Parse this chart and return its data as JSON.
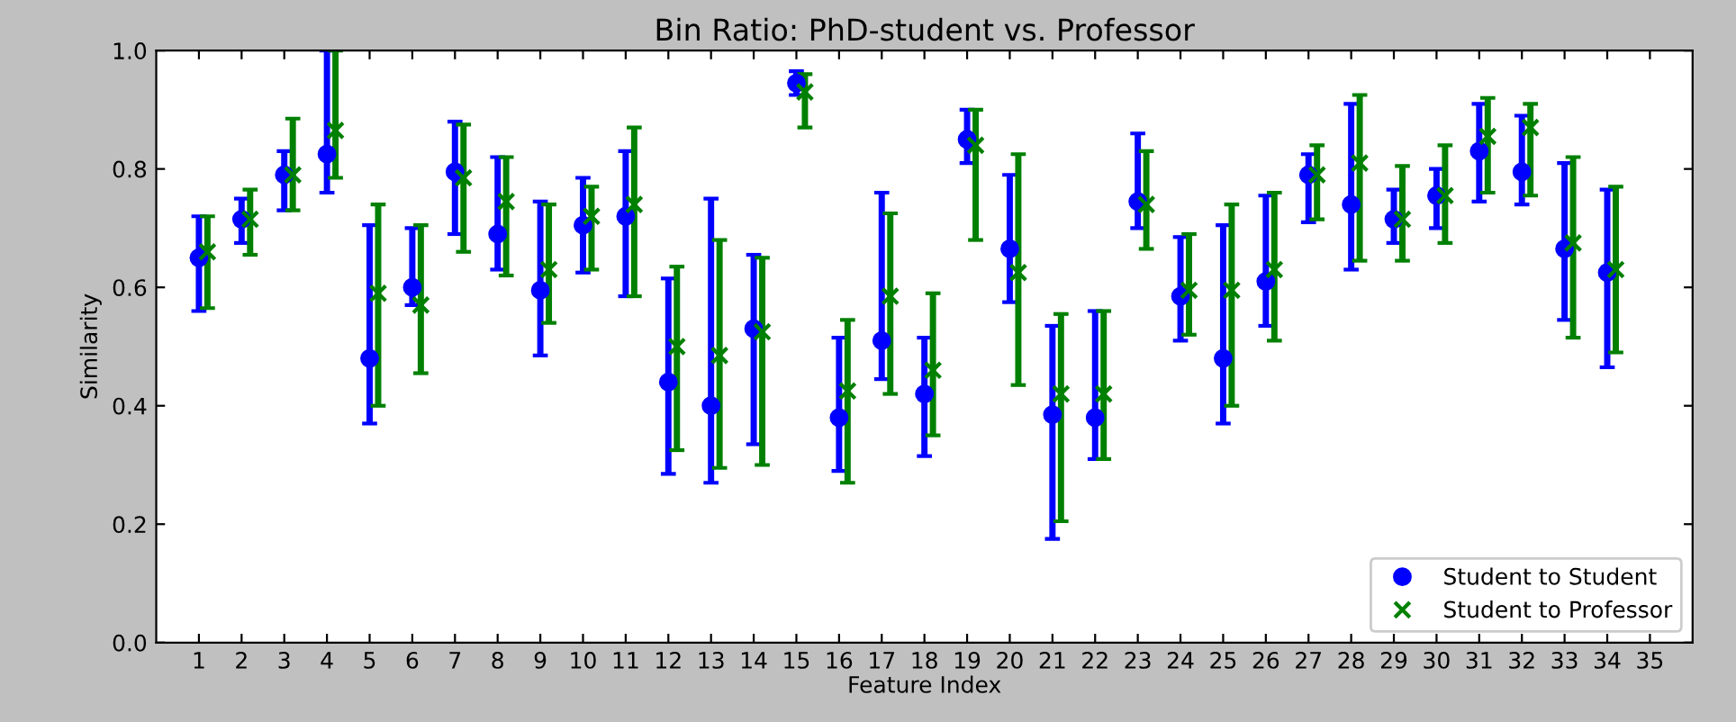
{
  "chart_data": {
    "type": "scatter",
    "title": "Bin Ratio: PhD-student vs. Professor",
    "xlabel": "Feature Index",
    "ylabel": "Similarity",
    "xlim": [
      0,
      36
    ],
    "xticks": [
      1,
      2,
      3,
      4,
      5,
      6,
      7,
      8,
      9,
      10,
      11,
      12,
      13,
      14,
      15,
      16,
      17,
      18,
      19,
      20,
      21,
      22,
      23,
      24,
      25,
      26,
      27,
      28,
      29,
      30,
      31,
      32,
      33,
      34,
      35
    ],
    "ylim": [
      0,
      1
    ],
    "yticks": [
      {
        "value": 0,
        "label": "0.0"
      },
      {
        "value": 0.2,
        "label": "0.2"
      },
      {
        "value": 0.4,
        "label": "0.4"
      },
      {
        "value": 0.6,
        "label": "0.6"
      },
      {
        "value": 0.8,
        "label": "0.8"
      },
      {
        "value": 1,
        "label": "1.0"
      }
    ],
    "grid": false,
    "legend": "bottom right",
    "series": [
      {
        "name": "Student to Student",
        "color": "#0000ff",
        "marker": "circle",
        "x": [
          1,
          2,
          3,
          4,
          5,
          6,
          7,
          8,
          9,
          10,
          11,
          12,
          13,
          14,
          15,
          16,
          17,
          18,
          19,
          20,
          21,
          22,
          23,
          24,
          25,
          26,
          27,
          28,
          29,
          30,
          31,
          32,
          33,
          34
        ],
        "values": [
          0.65,
          0.715,
          0.79,
          0.825,
          0.48,
          0.6,
          0.795,
          0.69,
          0.595,
          0.705,
          0.72,
          0.44,
          0.4,
          0.53,
          0.945,
          0.38,
          0.51,
          0.42,
          0.85,
          0.665,
          0.385,
          0.38,
          0.745,
          0.585,
          0.48,
          0.61,
          0.79,
          0.74,
          0.715,
          0.755,
          0.83,
          0.795,
          0.665,
          0.625
        ],
        "errors": [
          [
            0.56,
            0.72
          ],
          [
            0.675,
            0.75
          ],
          [
            0.73,
            0.83
          ],
          [
            0.76,
            1.0
          ],
          [
            0.37,
            0.705
          ],
          [
            0.57,
            0.7
          ],
          [
            0.69,
            0.88
          ],
          [
            0.63,
            0.82
          ],
          [
            0.485,
            0.745
          ],
          [
            0.625,
            0.785
          ],
          [
            0.585,
            0.83
          ],
          [
            0.285,
            0.615
          ],
          [
            0.27,
            0.75
          ],
          [
            0.335,
            0.655
          ],
          [
            0.925,
            0.965
          ],
          [
            0.29,
            0.515
          ],
          [
            0.445,
            0.76
          ],
          [
            0.315,
            0.515
          ],
          [
            0.81,
            0.9
          ],
          [
            0.575,
            0.79
          ],
          [
            0.175,
            0.535
          ],
          [
            0.31,
            0.56
          ],
          [
            0.7,
            0.86
          ],
          [
            0.51,
            0.685
          ],
          [
            0.37,
            0.705
          ],
          [
            0.535,
            0.755
          ],
          [
            0.71,
            0.825
          ],
          [
            0.63,
            0.91
          ],
          [
            0.675,
            0.765
          ],
          [
            0.7,
            0.8
          ],
          [
            0.745,
            0.91
          ],
          [
            0.74,
            0.89
          ],
          [
            0.545,
            0.81
          ],
          [
            0.465,
            0.765
          ]
        ]
      },
      {
        "name": "Student to Professor",
        "color": "#008000",
        "marker": "cross",
        "x": [
          1.2,
          2.2,
          3.2,
          4.2,
          5.2,
          6.2,
          7.2,
          8.2,
          9.2,
          10.2,
          11.2,
          12.2,
          13.2,
          14.2,
          15.2,
          16.2,
          17.2,
          18.2,
          19.2,
          20.2,
          21.2,
          22.2,
          23.2,
          24.2,
          25.2,
          26.2,
          27.2,
          28.2,
          29.2,
          30.2,
          31.2,
          32.2,
          33.2,
          34.2
        ],
        "values": [
          0.66,
          0.715,
          0.79,
          0.865,
          0.59,
          0.57,
          0.785,
          0.745,
          0.63,
          0.72,
          0.74,
          0.5,
          0.485,
          0.525,
          0.93,
          0.425,
          0.585,
          0.46,
          0.84,
          0.625,
          0.42,
          0.42,
          0.74,
          0.595,
          0.595,
          0.63,
          0.79,
          0.81,
          0.715,
          0.755,
          0.855,
          0.87,
          0.675,
          0.63
        ],
        "errors": [
          [
            0.565,
            0.72
          ],
          [
            0.655,
            0.765
          ],
          [
            0.73,
            0.885
          ],
          [
            0.785,
            1.0
          ],
          [
            0.4,
            0.74
          ],
          [
            0.455,
            0.705
          ],
          [
            0.66,
            0.875
          ],
          [
            0.62,
            0.82
          ],
          [
            0.54,
            0.74
          ],
          [
            0.63,
            0.77
          ],
          [
            0.585,
            0.87
          ],
          [
            0.325,
            0.635
          ],
          [
            0.295,
            0.68
          ],
          [
            0.3,
            0.65
          ],
          [
            0.87,
            0.96
          ],
          [
            0.27,
            0.545
          ],
          [
            0.42,
            0.725
          ],
          [
            0.35,
            0.59
          ],
          [
            0.68,
            0.9
          ],
          [
            0.435,
            0.825
          ],
          [
            0.205,
            0.555
          ],
          [
            0.31,
            0.56
          ],
          [
            0.665,
            0.83
          ],
          [
            0.52,
            0.69
          ],
          [
            0.4,
            0.74
          ],
          [
            0.51,
            0.76
          ],
          [
            0.715,
            0.84
          ],
          [
            0.645,
            0.925
          ],
          [
            0.645,
            0.805
          ],
          [
            0.675,
            0.84
          ],
          [
            0.76,
            0.92
          ],
          [
            0.755,
            0.91
          ],
          [
            0.515,
            0.82
          ],
          [
            0.49,
            0.77
          ]
        ]
      }
    ]
  }
}
